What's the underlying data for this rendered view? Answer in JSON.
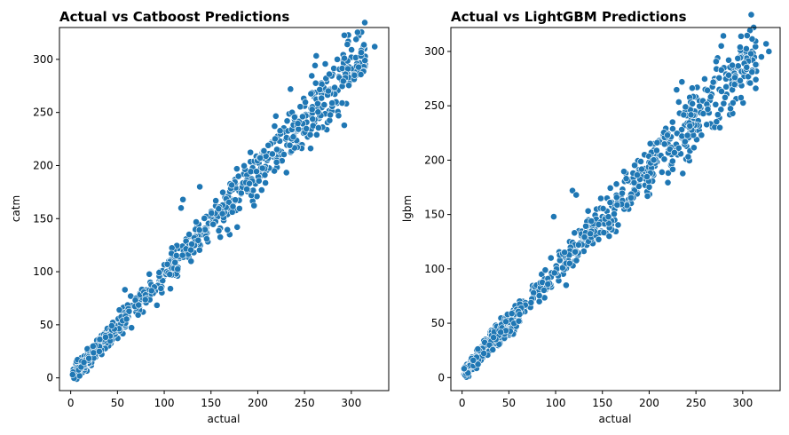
{
  "chart_data": [
    {
      "type": "scatter",
      "title": "Actual vs Catboost Predictions",
      "xlabel": "actual",
      "ylabel": "catm",
      "xlim": [
        -12,
        340
      ],
      "ylim": [
        -12,
        330
      ],
      "xticks": [
        0,
        50,
        100,
        150,
        200,
        250,
        300
      ],
      "yticks": [
        0,
        50,
        100,
        150,
        200,
        250,
        300
      ],
      "grid": false,
      "color": "#1f77b4",
      "n_points": 900,
      "trend": {
        "slope": 0.965,
        "intercept": 1.0
      },
      "series": [
        {
          "points": [
            [
              3,
              1
            ],
            [
              4,
              4
            ],
            [
              5,
              2
            ],
            [
              6,
              7
            ],
            [
              8,
              5
            ],
            [
              10,
              9
            ],
            [
              12,
              10
            ],
            [
              15,
              18
            ],
            [
              18,
              14
            ],
            [
              20,
              24
            ],
            [
              22,
              19
            ],
            [
              25,
              30
            ],
            [
              28,
              24
            ],
            [
              30,
              35
            ],
            [
              33,
              27
            ],
            [
              36,
              42
            ],
            [
              40,
              37
            ],
            [
              45,
              48
            ],
            [
              50,
              46
            ],
            [
              55,
              58
            ],
            [
              58,
              83
            ],
            [
              60,
              55
            ],
            [
              65,
              68
            ],
            [
              70,
              62
            ],
            [
              75,
              80
            ],
            [
              80,
              75
            ],
            [
              85,
              90
            ],
            [
              90,
              84
            ],
            [
              95,
              100
            ],
            [
              100,
              96
            ],
            [
              105,
              110
            ],
            [
              110,
              104
            ],
            [
              115,
              122
            ],
            [
              118,
              160
            ],
            [
              120,
              168
            ],
            [
              122,
              115
            ],
            [
              125,
              132
            ],
            [
              130,
              126
            ],
            [
              135,
              142
            ],
            [
              138,
              180
            ],
            [
              140,
              135
            ],
            [
              145,
              152
            ],
            [
              150,
              146
            ],
            [
              155,
              162
            ],
            [
              160,
              155
            ],
            [
              165,
              170
            ],
            [
              170,
              135
            ],
            [
              172,
              168
            ],
            [
              175,
              182
            ],
            [
              178,
              142
            ],
            [
              180,
              176
            ],
            [
              185,
              192
            ],
            [
              190,
              186
            ],
            [
              195,
              202
            ],
            [
              200,
              195
            ],
            [
              205,
              212
            ],
            [
              210,
              205
            ],
            [
              215,
              222
            ],
            [
              220,
              214
            ],
            [
              225,
              232
            ],
            [
              230,
              225
            ],
            [
              235,
              272
            ],
            [
              238,
              235
            ],
            [
              240,
              246
            ],
            [
              245,
              240
            ],
            [
              250,
              256
            ],
            [
              255,
              248
            ],
            [
              260,
              265
            ],
            [
              265,
              258
            ],
            [
              270,
              275
            ],
            [
              275,
              268
            ],
            [
              280,
              286
            ],
            [
              285,
              300
            ],
            [
              290,
              280
            ],
            [
              295,
              290
            ],
            [
              300,
              302
            ],
            [
              305,
              288
            ],
            [
              310,
              305
            ],
            [
              315,
              295
            ],
            [
              325,
              312
            ]
          ]
        }
      ]
    },
    {
      "type": "scatter",
      "title": "Actual vs LightGBM Predictions",
      "xlabel": "actual",
      "ylabel": "lgbm",
      "xlim": [
        -12,
        340
      ],
      "ylim": [
        -12,
        322
      ],
      "xticks": [
        0,
        50,
        100,
        150,
        200,
        250,
        300
      ],
      "yticks": [
        0,
        50,
        100,
        150,
        200,
        250,
        300
      ],
      "grid": false,
      "color": "#1f77b4",
      "n_points": 900,
      "trend": {
        "slope": 0.94,
        "intercept": 2.5
      },
      "series": [
        {
          "points": [
            [
              3,
              2
            ],
            [
              4,
              5
            ],
            [
              5,
              3
            ],
            [
              6,
              8
            ],
            [
              8,
              6
            ],
            [
              10,
              12
            ],
            [
              12,
              9
            ],
            [
              15,
              20
            ],
            [
              18,
              15
            ],
            [
              20,
              28
            ],
            [
              22,
              22
            ],
            [
              25,
              35
            ],
            [
              28,
              26
            ],
            [
              30,
              40
            ],
            [
              33,
              30
            ],
            [
              36,
              48
            ],
            [
              40,
              42
            ],
            [
              45,
              55
            ],
            [
              50,
              50
            ],
            [
              55,
              62
            ],
            [
              60,
              58
            ],
            [
              65,
              70
            ],
            [
              70,
              66
            ],
            [
              75,
              80
            ],
            [
              80,
              76
            ],
            [
              85,
              95
            ],
            [
              90,
              86
            ],
            [
              95,
              110
            ],
            [
              98,
              148
            ],
            [
              100,
              97
            ],
            [
              105,
              115
            ],
            [
              110,
              108
            ],
            [
              115,
              125
            ],
            [
              118,
              172
            ],
            [
              120,
              118
            ],
            [
              122,
              168
            ],
            [
              125,
              135
            ],
            [
              130,
              128
            ],
            [
              135,
              145
            ],
            [
              140,
              138
            ],
            [
              145,
              155
            ],
            [
              150,
              148
            ],
            [
              155,
              165
            ],
            [
              160,
              158
            ],
            [
              165,
              178
            ],
            [
              170,
              165
            ],
            [
              175,
              188
            ],
            [
              178,
              155
            ],
            [
              180,
              180
            ],
            [
              185,
              195
            ],
            [
              190,
              186
            ],
            [
              195,
              205
            ],
            [
              200,
              198
            ],
            [
              205,
              215
            ],
            [
              210,
              205
            ],
            [
              215,
              225
            ],
            [
              220,
              215
            ],
            [
              225,
              235
            ],
            [
              230,
              225
            ],
            [
              235,
              272
            ],
            [
              238,
              232
            ],
            [
              240,
              246
            ],
            [
              245,
              238
            ],
            [
              250,
              258
            ],
            [
              255,
              248
            ],
            [
              260,
              265
            ],
            [
              265,
              255
            ],
            [
              270,
              275
            ],
            [
              275,
              265
            ],
            [
              280,
              285
            ],
            [
              285,
              292
            ],
            [
              290,
              275
            ],
            [
              295,
              285
            ],
            [
              300,
              298
            ],
            [
              305,
              290
            ],
            [
              310,
              300
            ],
            [
              315,
              288
            ],
            [
              320,
              295
            ],
            [
              325,
              307
            ],
            [
              328,
              300
            ]
          ]
        }
      ]
    }
  ]
}
